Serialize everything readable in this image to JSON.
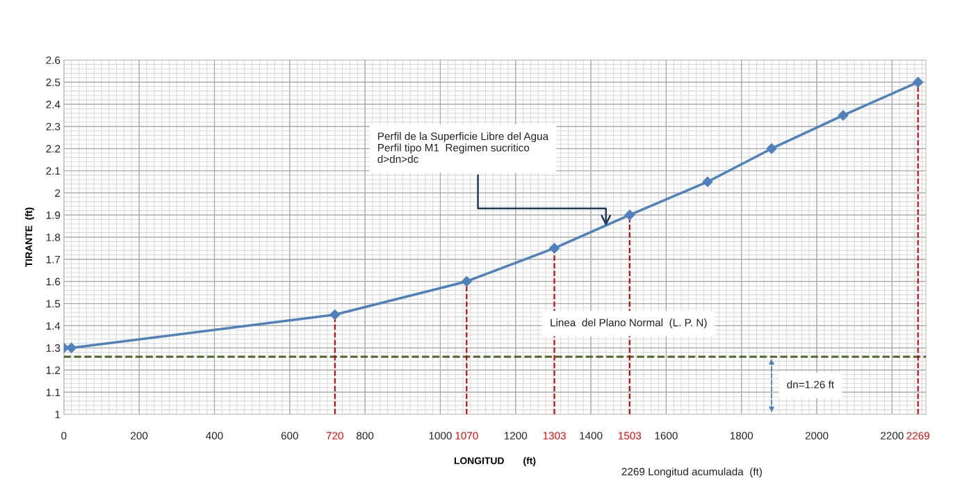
{
  "chart_data": {
    "type": "line",
    "xlabel": "LONGITUD       (ft)",
    "ylabel": "TIRANTE  (ft)",
    "x": [
      0,
      20,
      720,
      1070,
      1303,
      1503,
      1710,
      1880,
      2070,
      2269
    ],
    "series": [
      {
        "color": "#4f81bd",
        "values": [
          1.3,
          1.3,
          1.45,
          1.6,
          1.75,
          1.9,
          2.05,
          2.2,
          2.35,
          2.5
        ]
      }
    ],
    "marker": "diamond",
    "line_style": "solid",
    "xlim": [
      0,
      2290
    ],
    "xticks": [
      0,
      200,
      400,
      600,
      800,
      1000,
      1200,
      1400,
      1600,
      1800,
      2000,
      2200
    ],
    "ylim": [
      1,
      2.6
    ],
    "yticks": [
      1,
      1.1,
      1.2,
      1.3,
      1.4,
      1.5,
      1.6,
      1.7,
      1.8,
      1.9,
      2,
      2.1,
      2.2,
      2.3,
      2.4,
      2.5,
      2.6
    ],
    "grid": true,
    "ref_lines": [
      {
        "axis": "y",
        "value": 1.26,
        "label": "Linea  del Plano Normal  (L. P. N)",
        "color": "#4f6228",
        "line_style": "dashed"
      },
      {
        "axis": "x",
        "value": 720,
        "label": "720",
        "color": "#c00000",
        "line_style": "dashed"
      },
      {
        "axis": "x",
        "value": 1070,
        "label": "1070",
        "color": "#c00000",
        "line_style": "dashed"
      },
      {
        "axis": "x",
        "value": 1303,
        "label": "1303",
        "color": "#c00000",
        "line_style": "dashed"
      },
      {
        "axis": "x",
        "value": 1503,
        "label": "1503",
        "color": "#c00000",
        "line_style": "dashed"
      },
      {
        "axis": "x",
        "value": 2269,
        "label": "2269",
        "color": "#c00000",
        "line_style": "dashed"
      }
    ],
    "annotations": [
      {
        "text": "Perfil de la Superficie Libre del Agua\nPerfil tipo M1  Regimen sucritico\nd>dn>dc",
        "x": 1440,
        "y": 1.85
      },
      {
        "text": "dn=1.26 ft",
        "x": 1880,
        "y": 1.26
      },
      "2269 Longitud acumulada  (ft)"
    ]
  }
}
